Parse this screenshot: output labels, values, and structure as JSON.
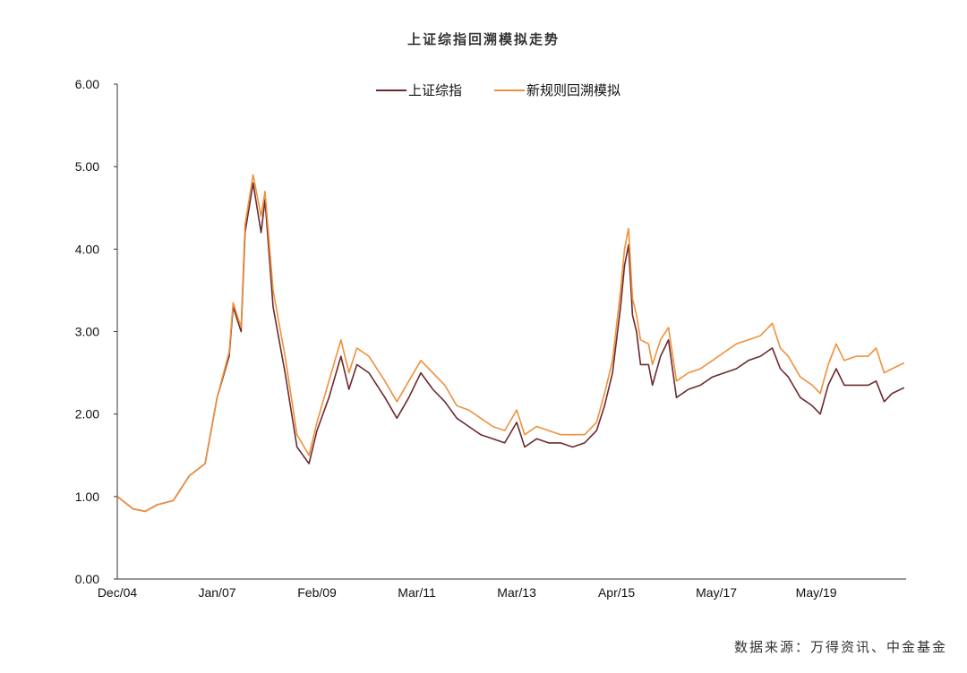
{
  "chart_data": {
    "type": "line",
    "title": "上证综指回溯模拟走势",
    "source": "数据来源：万得资讯、中金基金",
    "xlabel": "",
    "ylabel": "",
    "x_unit": "months since Dec/04",
    "xlim": [
      0,
      197.5
    ],
    "ylim": [
      0,
      6
    ],
    "yticks": [
      "0.00",
      "1.00",
      "2.00",
      "3.00",
      "4.00",
      "5.00",
      "6.00"
    ],
    "xticks": [
      {
        "label": "Dec/04",
        "x": 0
      },
      {
        "label": "Jan/07",
        "x": 25
      },
      {
        "label": "Feb/09",
        "x": 50
      },
      {
        "label": "Mar/11",
        "x": 75
      },
      {
        "label": "Mar/13",
        "x": 100
      },
      {
        "label": "Apr/15",
        "x": 125
      },
      {
        "label": "May/17",
        "x": 150
      },
      {
        "label": "May/19",
        "x": 175
      }
    ],
    "grid": false,
    "legend_position": "top-center",
    "x": [
      0,
      4,
      7,
      10,
      14,
      18,
      22,
      25,
      28,
      29,
      31,
      32,
      34,
      36,
      37,
      39,
      42,
      45,
      48,
      50,
      53,
      56,
      58,
      60,
      63,
      67,
      70,
      73,
      76,
      79,
      82,
      85,
      88,
      91,
      94,
      97,
      100,
      102,
      105,
      108,
      111,
      114,
      117,
      120,
      122,
      124,
      126,
      127,
      128,
      129,
      130,
      131,
      133,
      134,
      136,
      138,
      140,
      143,
      146,
      149,
      152,
      155,
      158,
      161,
      164,
      166,
      168,
      171,
      174,
      176,
      178,
      180,
      182,
      185,
      188,
      190,
      192,
      194,
      197
    ],
    "series": [
      {
        "name": "上证综指",
        "color": "#6b2a2e",
        "values": [
          1.0,
          0.85,
          0.82,
          0.9,
          0.95,
          1.25,
          1.4,
          2.2,
          2.7,
          3.3,
          3.0,
          4.2,
          4.8,
          4.2,
          4.6,
          3.3,
          2.5,
          1.6,
          1.4,
          1.8,
          2.2,
          2.7,
          2.3,
          2.6,
          2.5,
          2.2,
          1.95,
          2.2,
          2.5,
          2.3,
          2.15,
          1.95,
          1.85,
          1.75,
          1.7,
          1.65,
          1.9,
          1.6,
          1.7,
          1.65,
          1.65,
          1.6,
          1.65,
          1.8,
          2.1,
          2.5,
          3.3,
          3.8,
          4.05,
          3.2,
          3.0,
          2.6,
          2.6,
          2.35,
          2.7,
          2.9,
          2.2,
          2.3,
          2.35,
          2.45,
          2.5,
          2.55,
          2.65,
          2.7,
          2.8,
          2.55,
          2.45,
          2.2,
          2.1,
          2.0,
          2.35,
          2.55,
          2.35,
          2.35,
          2.35,
          2.4,
          2.15,
          2.25,
          2.32
        ]
      },
      {
        "name": "新规则回溯模拟",
        "color": "#f0903a",
        "values": [
          1.0,
          0.85,
          0.82,
          0.9,
          0.95,
          1.25,
          1.4,
          2.2,
          2.75,
          3.35,
          3.05,
          4.3,
          4.9,
          4.4,
          4.7,
          3.5,
          2.7,
          1.75,
          1.5,
          1.9,
          2.4,
          2.9,
          2.5,
          2.8,
          2.7,
          2.4,
          2.15,
          2.4,
          2.65,
          2.5,
          2.35,
          2.1,
          2.05,
          1.95,
          1.85,
          1.8,
          2.05,
          1.75,
          1.85,
          1.8,
          1.75,
          1.75,
          1.75,
          1.9,
          2.25,
          2.65,
          3.5,
          4.0,
          4.25,
          3.4,
          3.2,
          2.9,
          2.85,
          2.6,
          2.9,
          3.05,
          2.4,
          2.5,
          2.55,
          2.65,
          2.75,
          2.85,
          2.9,
          2.95,
          3.1,
          2.8,
          2.7,
          2.45,
          2.35,
          2.25,
          2.6,
          2.85,
          2.65,
          2.7,
          2.7,
          2.8,
          2.5,
          2.55,
          2.62
        ]
      }
    ]
  }
}
